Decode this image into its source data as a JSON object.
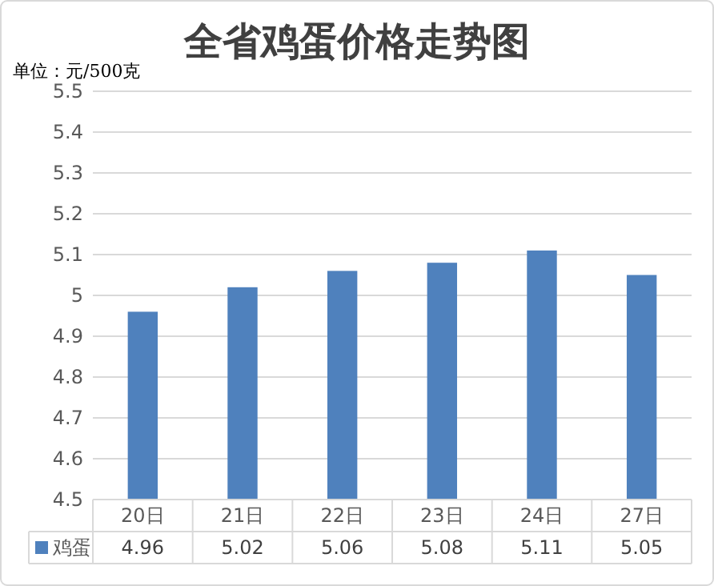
{
  "chart_data": {
    "type": "bar",
    "title": "全省鸡蛋价格走势图",
    "ylabel": "单位：元/500克",
    "categories": [
      "20日",
      "21日",
      "22日",
      "23日",
      "24日",
      "27日"
    ],
    "series": [
      {
        "name": "鸡蛋",
        "color": "#4f81bd",
        "values": [
          4.96,
          5.02,
          5.06,
          5.08,
          5.11,
          5.05
        ]
      }
    ],
    "ylim": [
      4.5,
      5.5
    ],
    "yticks": [
      4.5,
      4.6,
      4.7,
      4.8,
      4.9,
      5,
      5.1,
      5.2,
      5.3,
      5.4,
      5.5
    ],
    "grid": "y",
    "data_labels": true,
    "legend": "bottom"
  }
}
